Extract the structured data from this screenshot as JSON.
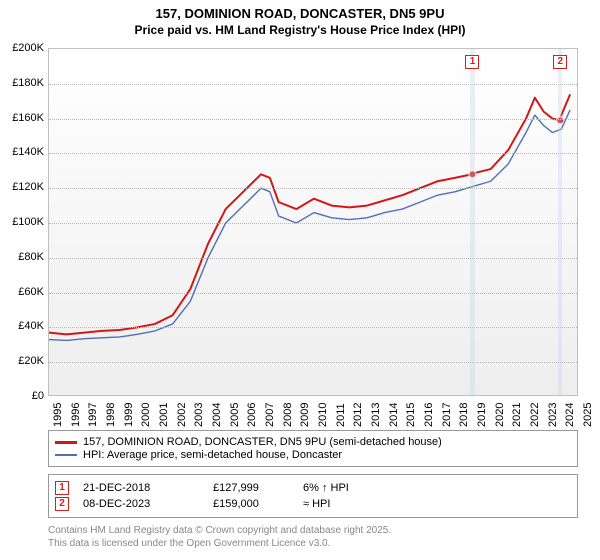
{
  "title": {
    "line1": "157, DOMINION ROAD, DONCASTER, DN5 9PU",
    "line2": "Price paid vs. HM Land Registry's House Price Index (HPI)",
    "fontsize_main": 13,
    "fontsize_sub": 12
  },
  "chart": {
    "type": "line",
    "background_gradient": [
      "#ffffff",
      "#eeeeee"
    ],
    "border_color": "#c0c0c0",
    "grid_color": "#b8b8b8",
    "xlim": [
      1995,
      2025
    ],
    "ylim": [
      0,
      200000
    ],
    "ytick_step": 20000,
    "yticks": [
      {
        "v": 0,
        "label": "£0"
      },
      {
        "v": 20000,
        "label": "£20K"
      },
      {
        "v": 40000,
        "label": "£40K"
      },
      {
        "v": 60000,
        "label": "£60K"
      },
      {
        "v": 80000,
        "label": "£80K"
      },
      {
        "v": 100000,
        "label": "£100K"
      },
      {
        "v": 120000,
        "label": "£120K"
      },
      {
        "v": 140000,
        "label": "£140K"
      },
      {
        "v": 160000,
        "label": "£160K"
      },
      {
        "v": 180000,
        "label": "£180K"
      },
      {
        "v": 200000,
        "label": "£200K"
      }
    ],
    "xticks": [
      1995,
      1996,
      1997,
      1998,
      1999,
      2000,
      2001,
      2002,
      2003,
      2004,
      2005,
      2006,
      2007,
      2008,
      2009,
      2010,
      2011,
      2012,
      2013,
      2014,
      2015,
      2016,
      2017,
      2018,
      2019,
      2020,
      2021,
      2022,
      2023,
      2024,
      2025
    ],
    "series": [
      {
        "name": "157, DOMINION ROAD, DONCASTER, DN5 9PU (semi-detached house)",
        "color": "#d01818",
        "line_width": 2,
        "points": [
          [
            1995,
            37000
          ],
          [
            1996,
            36000
          ],
          [
            1997,
            37000
          ],
          [
            1998,
            38000
          ],
          [
            1999,
            38500
          ],
          [
            2000,
            40000
          ],
          [
            2001,
            42000
          ],
          [
            2002,
            47000
          ],
          [
            2003,
            62000
          ],
          [
            2004,
            88000
          ],
          [
            2005,
            108000
          ],
          [
            2006,
            118000
          ],
          [
            2007,
            128000
          ],
          [
            2007.5,
            126000
          ],
          [
            2008,
            112000
          ],
          [
            2009,
            108000
          ],
          [
            2010,
            114000
          ],
          [
            2011,
            110000
          ],
          [
            2012,
            109000
          ],
          [
            2013,
            110000
          ],
          [
            2014,
            113000
          ],
          [
            2015,
            116000
          ],
          [
            2016,
            120000
          ],
          [
            2017,
            124000
          ],
          [
            2018,
            126000
          ],
          [
            2018.95,
            128000
          ],
          [
            2019,
            128500
          ],
          [
            2020,
            131000
          ],
          [
            2021,
            142000
          ],
          [
            2022,
            160000
          ],
          [
            2022.5,
            172000
          ],
          [
            2023,
            164000
          ],
          [
            2023.5,
            160000
          ],
          [
            2023.94,
            159000
          ],
          [
            2024,
            162000
          ],
          [
            2024.5,
            174000
          ]
        ]
      },
      {
        "name": "HPI: Average price, semi-detached house, Doncaster",
        "color": "#5070b8",
        "line_width": 1.4,
        "points": [
          [
            1995,
            33000
          ],
          [
            1996,
            32500
          ],
          [
            1997,
            33500
          ],
          [
            1998,
            34000
          ],
          [
            1999,
            34500
          ],
          [
            2000,
            36000
          ],
          [
            2001,
            38000
          ],
          [
            2002,
            42000
          ],
          [
            2003,
            55000
          ],
          [
            2004,
            80000
          ],
          [
            2005,
            100000
          ],
          [
            2006,
            110000
          ],
          [
            2007,
            120000
          ],
          [
            2007.5,
            118000
          ],
          [
            2008,
            104000
          ],
          [
            2009,
            100000
          ],
          [
            2010,
            106000
          ],
          [
            2011,
            103000
          ],
          [
            2012,
            102000
          ],
          [
            2013,
            103000
          ],
          [
            2014,
            106000
          ],
          [
            2015,
            108000
          ],
          [
            2016,
            112000
          ],
          [
            2017,
            116000
          ],
          [
            2018,
            118000
          ],
          [
            2019,
            121000
          ],
          [
            2020,
            124000
          ],
          [
            2021,
            134000
          ],
          [
            2022,
            152000
          ],
          [
            2022.5,
            162000
          ],
          [
            2023,
            156000
          ],
          [
            2023.5,
            152000
          ],
          [
            2024,
            154000
          ],
          [
            2024.5,
            165000
          ]
        ]
      }
    ],
    "sale_markers": [
      {
        "n": "1",
        "year": 2018.97,
        "value": 127999
      },
      {
        "n": "2",
        "year": 2023.94,
        "value": 159000
      }
    ],
    "sale_bands": [
      {
        "from": 2018.85,
        "to": 2019.1
      },
      {
        "from": 2023.8,
        "to": 2024.05
      }
    ]
  },
  "legend": {
    "border_color": "#999999",
    "items": [
      {
        "color": "#d01818",
        "label": "157, DOMINION ROAD, DONCASTER, DN5 9PU (semi-detached house)"
      },
      {
        "color": "#5070b8",
        "label": "HPI: Average price, semi-detached house, Doncaster"
      }
    ]
  },
  "sales_table": {
    "rows": [
      {
        "n": "1",
        "date": "21-DEC-2018",
        "price": "£127,999",
        "pct": "6% ↑ HPI"
      },
      {
        "n": "2",
        "date": "08-DEC-2023",
        "price": "£159,000",
        "pct": "≈ HPI"
      }
    ]
  },
  "footnote": {
    "line1": "Contains HM Land Registry data © Crown copyright and database right 2025.",
    "line2": "This data is licensed under the Open Government Licence v3.0.",
    "color": "#888888",
    "fontsize": 10
  }
}
